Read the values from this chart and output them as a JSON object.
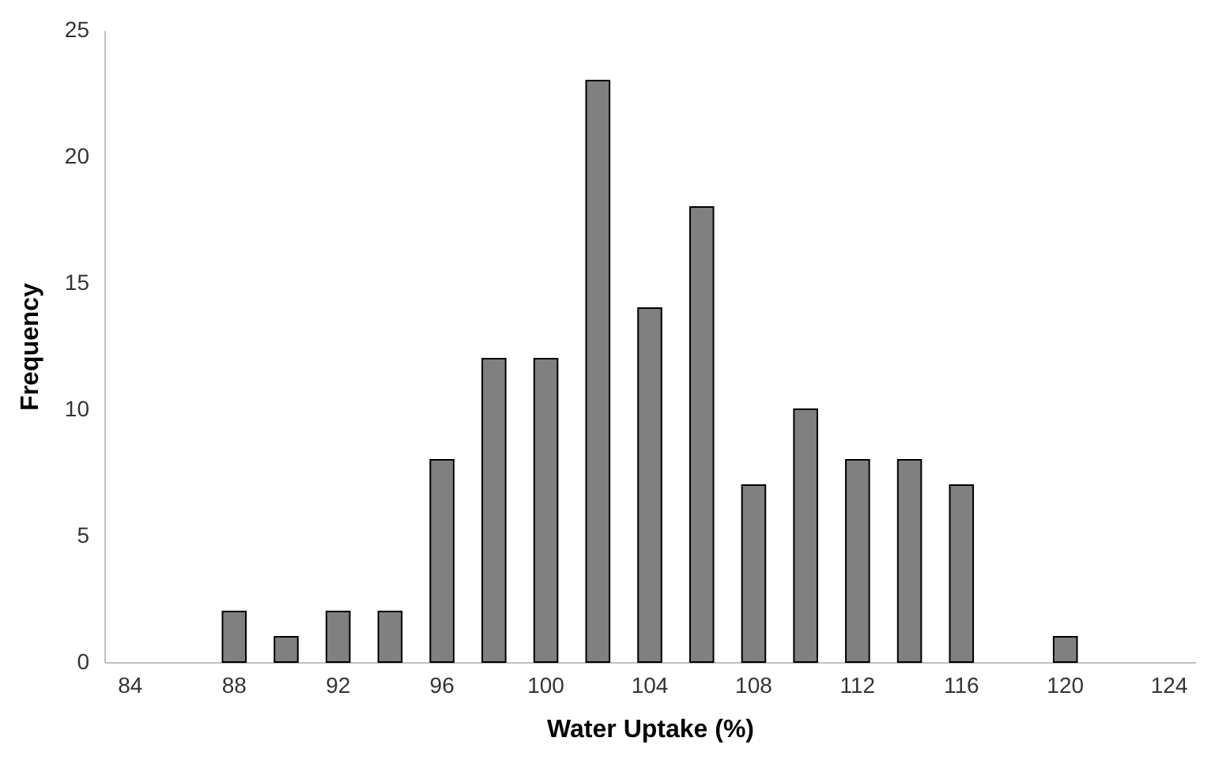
{
  "chart_data": {
    "type": "bar",
    "xlabel": "Water Uptake (%)",
    "ylabel": "Frequency",
    "categories": [
      "84",
      null,
      "88",
      null,
      "92",
      null,
      "96",
      null,
      "100",
      null,
      "104",
      null,
      "108",
      null,
      "112",
      null,
      "116",
      null,
      "120",
      null,
      "124"
    ],
    "values": [
      0,
      0,
      2,
      1,
      2,
      2,
      8,
      12,
      12,
      23,
      14,
      18,
      7,
      10,
      8,
      8,
      7,
      0,
      1,
      0,
      0
    ],
    "color": "#808080",
    "ylim": [
      0,
      25
    ],
    "yticks": [
      0,
      5,
      10,
      15,
      20,
      25
    ],
    "grid": false
  }
}
